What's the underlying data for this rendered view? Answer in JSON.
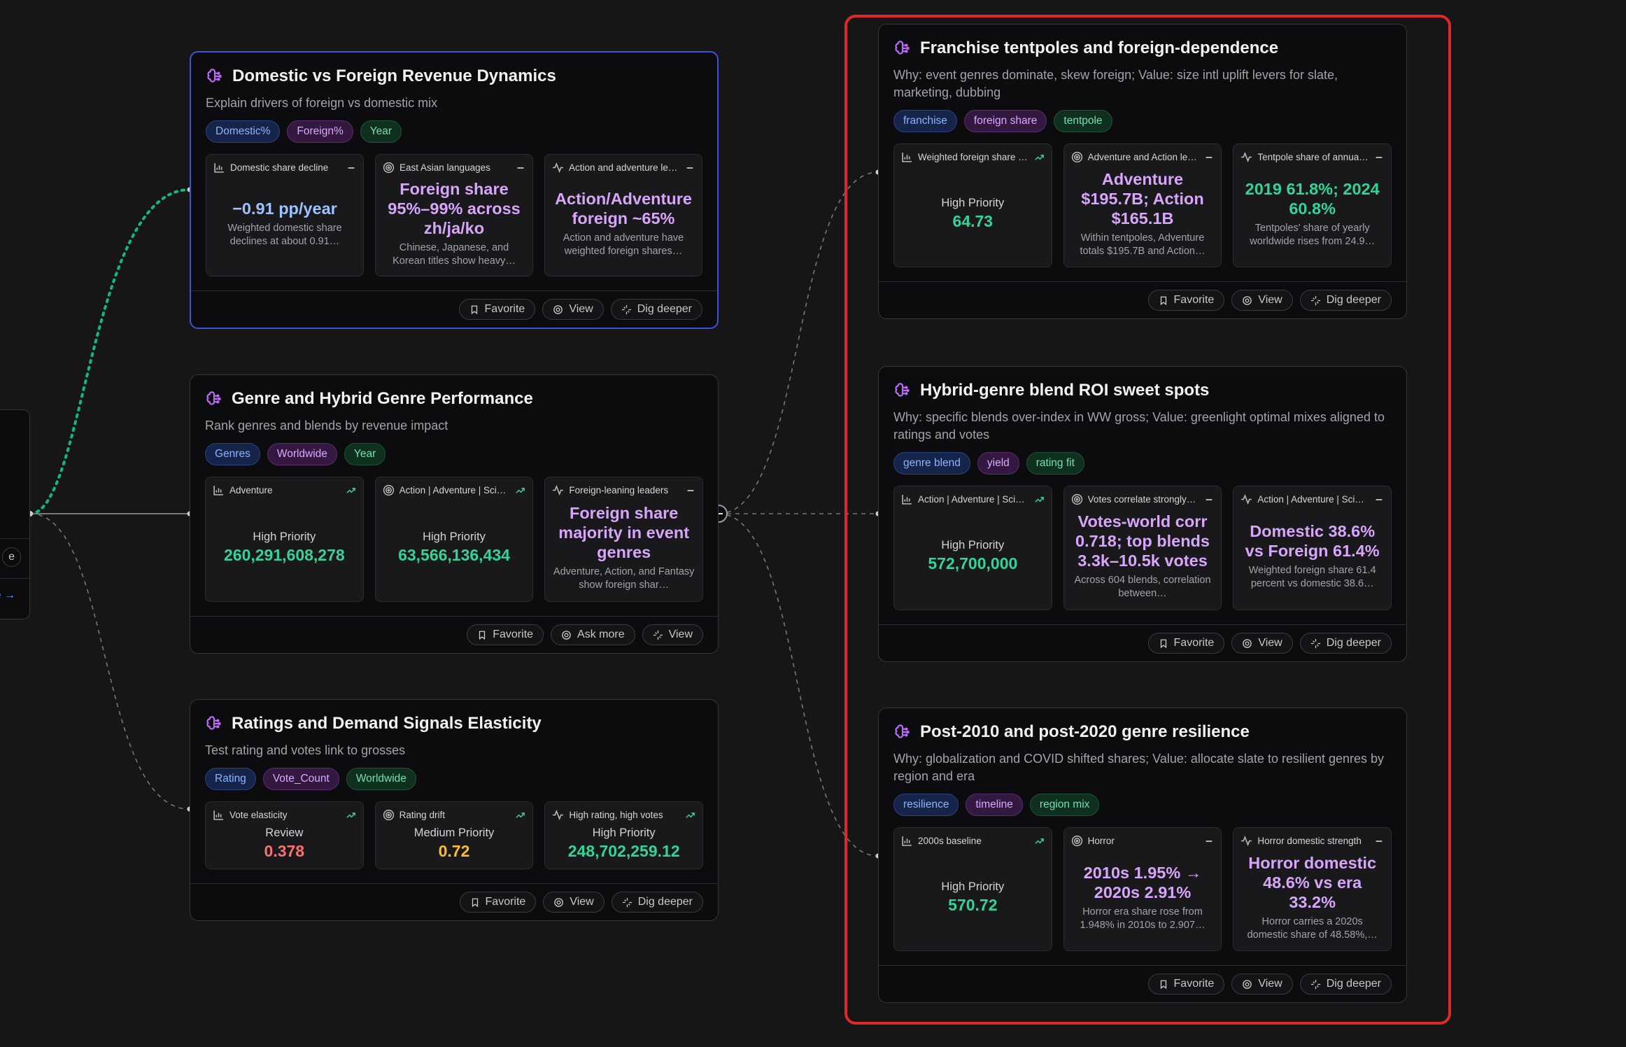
{
  "partial_node": {
    "actions": [
      "e",
      "e →"
    ]
  },
  "left_cards": [
    {
      "title": "Domestic vs Foreign Revenue Dynamics",
      "subtitle": "Explain drivers of foreign vs domestic mix",
      "selected": true,
      "tags": [
        "Domestic%",
        "Foreign%",
        "Year"
      ],
      "metrics": [
        {
          "icon": "bar",
          "label": "Domestic share decline",
          "indicator": "minus",
          "value": "−0.91 pp/year",
          "tone": "blue",
          "description": "Weighted domestic share declines at about 0.91…"
        },
        {
          "icon": "target",
          "label": "East Asian languages",
          "indicator": "minus",
          "value": "Foreign share 95%–99% across zh/ja/ko",
          "tone": "purple",
          "description": "Chinese, Japanese, and Korean titles show heavy…"
        },
        {
          "icon": "pulse",
          "label": "Action and adventure le…",
          "indicator": "minus",
          "value": "Action/Adventure foreign ~65%",
          "tone": "purple",
          "description": "Action and adventure have weighted foreign shares…"
        }
      ],
      "actions": [
        "Favorite",
        "View",
        "Dig deeper"
      ]
    },
    {
      "title": "Genre and Hybrid Genre Performance",
      "subtitle": "Rank genres and blends by revenue impact",
      "tags": [
        "Genres",
        "Worldwide",
        "Year"
      ],
      "metrics": [
        {
          "icon": "bar",
          "label": "Adventure",
          "indicator": "trend",
          "priority": "High Priority",
          "value": "260,291,608,278",
          "tone": "green"
        },
        {
          "icon": "target",
          "label": "Action | Adventure | Sci…",
          "indicator": "trend",
          "priority": "High Priority",
          "value": "63,566,136,434",
          "tone": "green"
        },
        {
          "icon": "pulse",
          "label": "Foreign-leaning leaders",
          "indicator": "minus",
          "value": "Foreign share majority in event genres",
          "tone": "purple",
          "description": "Adventure, Action, and Fantasy show foreign shar…"
        }
      ],
      "actions": [
        "Favorite",
        "Ask more",
        "View"
      ]
    },
    {
      "title": "Ratings and Demand Signals Elasticity",
      "subtitle": "Test rating and votes link to grosses",
      "tags": [
        "Rating",
        "Vote_Count",
        "Worldwide"
      ],
      "metrics": [
        {
          "icon": "bar",
          "label": "Vote elasticity",
          "indicator": "trend",
          "priority": "Review",
          "value": "0.378",
          "tone": "red"
        },
        {
          "icon": "target",
          "label": "Rating drift",
          "indicator": "trend",
          "priority": "Medium Priority",
          "value": "0.72",
          "tone": "yellow"
        },
        {
          "icon": "pulse",
          "label": "High rating, high votes",
          "indicator": "trend",
          "priority": "High Priority",
          "value": "248,702,259.12",
          "tone": "green"
        }
      ],
      "actions": [
        "Favorite",
        "View",
        "Dig deeper"
      ]
    }
  ],
  "right_cards": [
    {
      "title": "Franchise tentpoles and foreign-dependence",
      "subtitle": "Why: event genres dominate, skew foreign; Value: size intl uplift levers for slate, marketing, dubbing",
      "tags": [
        "franchise",
        "foreign share",
        "tentpole"
      ],
      "metrics": [
        {
          "icon": "bar",
          "label": "Weighted foreign share …",
          "indicator": "trend",
          "priority": "High Priority",
          "value": "64.73",
          "tone": "green"
        },
        {
          "icon": "target",
          "label": "Adventure and Action le…",
          "indicator": "minus",
          "value": "Adventure $195.7B; Action $165.1B",
          "tone": "purple",
          "description": "Within tentpoles, Adventure totals $195.7B and Action…"
        },
        {
          "icon": "pulse",
          "label": "Tentpole share of annua…",
          "indicator": "minus",
          "value": "2019 61.8%; 2024 60.8%",
          "tone": "green",
          "description": "Tentpoles' share of yearly worldwide rises from 24.9…"
        }
      ],
      "actions": [
        "Favorite",
        "View",
        "Dig deeper"
      ]
    },
    {
      "title": "Hybrid-genre blend ROI sweet spots",
      "subtitle": "Why: specific blends over-index in WW gross; Value: greenlight optimal mixes aligned to ratings and votes",
      "tags": [
        "genre blend",
        "yield",
        "rating fit"
      ],
      "metrics": [
        {
          "icon": "bar",
          "label": "Action | Adventure | Sci…",
          "indicator": "trend",
          "priority": "High Priority",
          "value": "572,700,000",
          "tone": "green"
        },
        {
          "icon": "target",
          "label": "Votes correlate strongly…",
          "indicator": "minus",
          "value": "Votes-world corr 0.718; top blends 3.3k–10.5k votes",
          "tone": "purple",
          "description": "Across 604 blends, correlation between…"
        },
        {
          "icon": "pulse",
          "label": "Action | Adventure | Sci…",
          "indicator": "minus",
          "value": "Domestic 38.6% vs Foreign 61.4%",
          "tone": "purple",
          "description": "Weighted foreign share 61.4 percent vs domestic 38.6…"
        }
      ],
      "actions": [
        "Favorite",
        "View",
        "Dig deeper"
      ]
    },
    {
      "title": "Post-2010 and post-2020 genre resilience",
      "subtitle": "Why: globalization and COVID shifted shares; Value: allocate slate to resilient genres by region and era",
      "tags": [
        "resilience",
        "timeline",
        "region mix"
      ],
      "metrics": [
        {
          "icon": "bar",
          "label": "2000s baseline",
          "indicator": "trend",
          "priority": "High Priority",
          "value": "570.72",
          "tone": "green"
        },
        {
          "icon": "target",
          "label": "Horror",
          "indicator": "minus",
          "value": "2010s 1.95% → 2020s 2.91%",
          "tone": "purple",
          "description": "Horror era share rose from 1.948% in 2010s to 2.907…"
        },
        {
          "icon": "pulse",
          "label": "Horror domestic strength",
          "indicator": "minus",
          "value": "Horror domestic 48.6% vs era 33.2%",
          "tone": "purple",
          "description": "Horror carries a 2020s domestic share of 48.58%,…"
        }
      ],
      "actions": [
        "Favorite",
        "View",
        "Dig deeper"
      ]
    }
  ]
}
